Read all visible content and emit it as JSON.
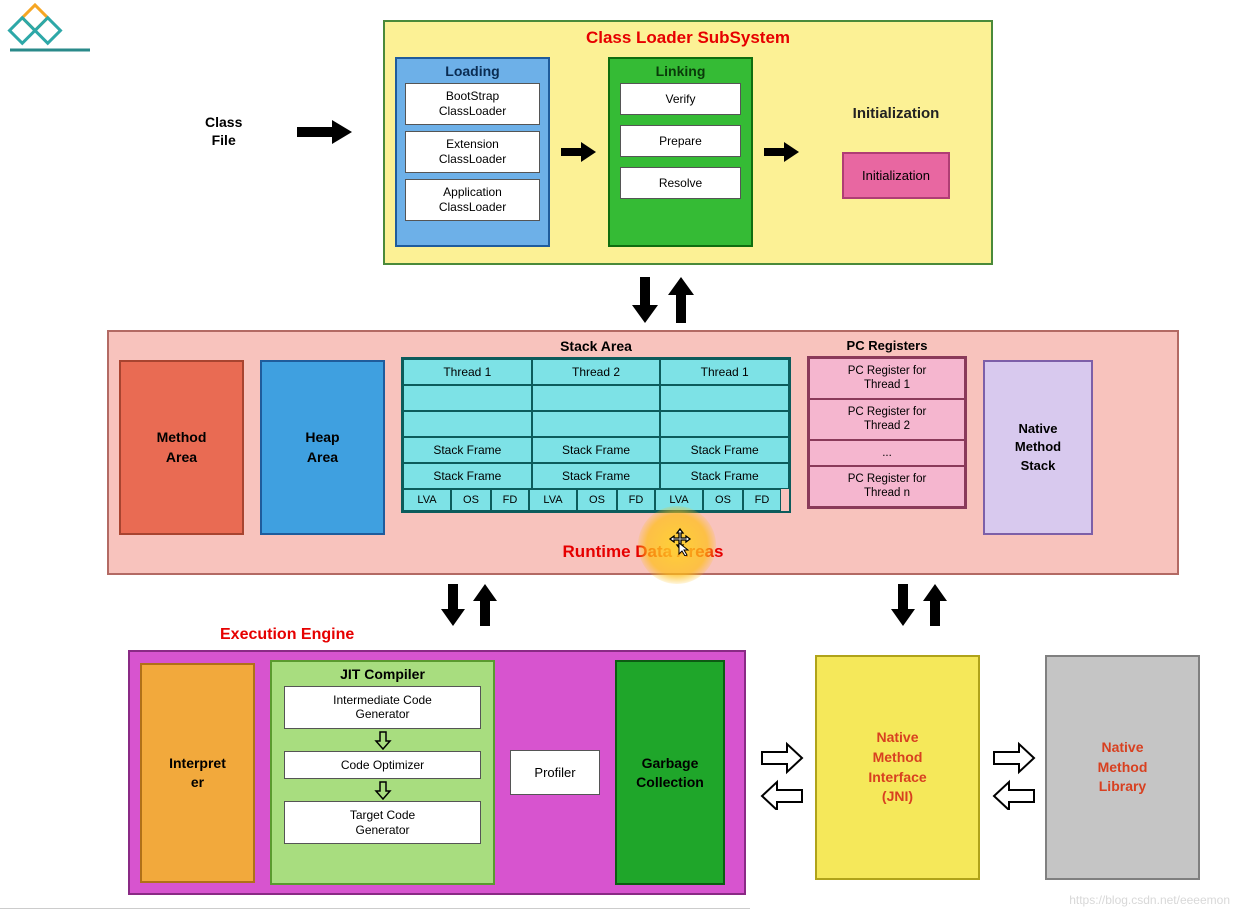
{
  "logo": {
    "colors": {
      "c1": "#f6a623",
      "c2": "#2da8a8",
      "line": "#2a8a8a"
    }
  },
  "classFile": {
    "label": "Class\nFile"
  },
  "classLoader": {
    "title": "Class Loader SubSystem",
    "bg": "#fcf195",
    "border": "#4a8a3a",
    "loading": {
      "title": "Loading",
      "bg": "#6db0e8",
      "border": "#1f5c9c",
      "items": [
        "BootStrap\nClassLoader",
        "Extension\nClassLoader",
        "Application\nClassLoader"
      ]
    },
    "linking": {
      "title": "Linking",
      "bg": "#35bb35",
      "border": "#0f6e0f",
      "items": [
        "Verify",
        "Prepare",
        "Resolve"
      ]
    },
    "initialization": {
      "label": "Initialization",
      "boxLabel": "Initialization",
      "bg": "#e867a1",
      "border": "#b03d74"
    }
  },
  "runtime": {
    "title": "Runtime Data Areas",
    "bg": "#f8c3bd",
    "border": "#b36a64",
    "methodArea": {
      "label": "Method\nArea",
      "bg": "#e96b53",
      "border": "#a84430"
    },
    "heapArea": {
      "label": "Heap\nArea",
      "bg": "#3fa0e0",
      "border": "#1f5c9c"
    },
    "stack": {
      "title": "Stack Area",
      "cell_bg": "#7de2e6",
      "cell_border": "#0c5c5c",
      "headers": [
        "Thread 1",
        "Thread 2",
        "Thread 1"
      ],
      "empty_rows": 2,
      "frame_rows": [
        [
          "Stack Frame",
          "Stack Frame",
          "Stack Frame"
        ],
        [
          "Stack Frame",
          "Stack Frame",
          "Stack Frame"
        ]
      ],
      "sub_labels": [
        "LVA",
        "OS",
        "FD"
      ]
    },
    "pc": {
      "title": "PC Registers",
      "bg": "#f5b6cf",
      "border": "#8a3a5a",
      "items": [
        "PC Register for\nThread 1",
        "PC Register for\nThread 2",
        "...",
        "PC Register for\nThread n"
      ]
    },
    "nativeStack": {
      "label": "Native\nMethod\nStack",
      "bg": "#d8c9ee",
      "border": "#7d5fa8"
    }
  },
  "execEngine": {
    "label": "Execution Engine",
    "bg": "#d754cf",
    "border": "#8a2a85",
    "interpreter": {
      "label": "Interpret\ner",
      "bg": "#f2a93c",
      "border": "#b07018"
    },
    "jit": {
      "title": "JIT Compiler",
      "bg": "#a8dd7f",
      "border": "#5a9a2f",
      "items": [
        "Intermediate Code\nGenerator",
        "Code Optimizer",
        "Target Code\nGenerator"
      ]
    },
    "profiler": {
      "label": "Profiler"
    },
    "gc": {
      "label": "Garbage\nCollection",
      "bg": "#1fa62a",
      "border": "#0c5c12"
    }
  },
  "jni": {
    "label": "Native\nMethod\nInterface\n(JNI)",
    "bg": "#f5e85a",
    "border": "#b0a31a",
    "text": "#d84020"
  },
  "natlib": {
    "label": "Native\nMethod\nLibrary",
    "bg": "#c5c5c5",
    "border": "#808080",
    "text": "#d84020"
  },
  "watermark": "https://blog.csdn.net/eeeemon",
  "arrows": {
    "solid_fill": "#000000",
    "outline_stroke": "#000000"
  }
}
